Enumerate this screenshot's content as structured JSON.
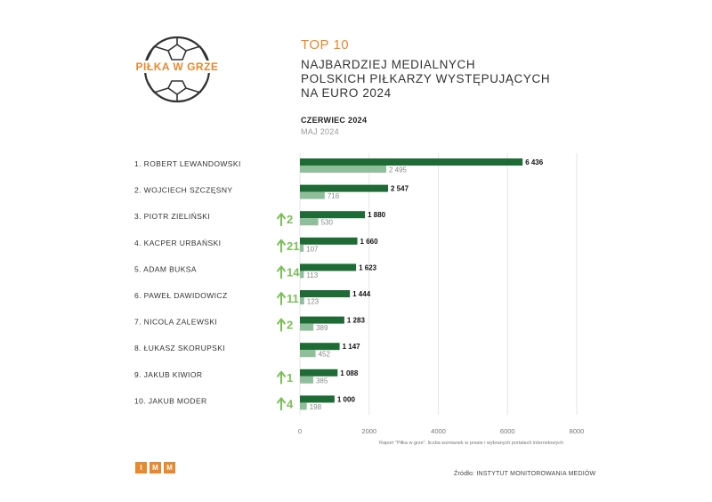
{
  "logo": {
    "text": "PIŁKA W GRZE"
  },
  "header": {
    "top": "TOP 10",
    "lines": [
      "NAJBARDZIEJ MEDIALNYCH",
      "POLSKICH PIŁKARZY WYSTĘPUJĄCYCH",
      "NA EURO 2024"
    ]
  },
  "legend": {
    "current": "CZERWIEC 2024",
    "previous": "MAJ 2024"
  },
  "colors": {
    "current": "#1e6b35",
    "previous": "#8fbf9a",
    "accent": "#e8892e",
    "arrow": "#7cbf5a"
  },
  "chart_data": {
    "type": "bar",
    "orientation": "horizontal",
    "categories": [
      "1. ROBERT LEWANDOWSKI",
      "2. WOJCIECH SZCZĘSNY",
      "3. PIOTR ZIELIŃSKI",
      "4. KACPER URBAŃSKI",
      "5. ADAM BUKSA",
      "6. PAWEŁ DAWIDOWICZ",
      "7. NICOLA ZALEWSKI",
      "8. ŁUKASZ SKORUPSKI",
      "9. JAKUB KIWIOR",
      "10. JAKUB MODER"
    ],
    "series": [
      {
        "name": "CZERWIEC 2024",
        "values": [
          6436,
          2547,
          1880,
          1660,
          1623,
          1444,
          1283,
          1147,
          1088,
          1000
        ],
        "labels": [
          "6 436",
          "2 547",
          "1 880",
          "1 660",
          "1 623",
          "1 444",
          "1 283",
          "1 147",
          "1 088",
          "1 000"
        ]
      },
      {
        "name": "MAJ 2024",
        "values": [
          2495,
          716,
          530,
          107,
          113,
          123,
          389,
          452,
          385,
          198
        ],
        "labels": [
          "2 495",
          "716",
          "530",
          "107",
          "113",
          "123",
          "389",
          "452",
          "385",
          "198"
        ]
      }
    ],
    "rank_change": [
      "",
      "",
      "2",
      "21",
      "14",
      "11",
      "2",
      "",
      "1",
      "4"
    ],
    "xticks": [
      "0",
      "2000",
      "4000",
      "6000",
      "8000"
    ],
    "xlim": [
      0,
      8000
    ],
    "grid": true
  },
  "footnote": "Raport \"Piłka w grze\". liczba wzmianek w prasie i wybranych portalach internetowych",
  "imm_letters": [
    "I",
    "M",
    "M"
  ],
  "source": "Źródło: INSTYTUT MONITOROWANIA MEDIÓW"
}
